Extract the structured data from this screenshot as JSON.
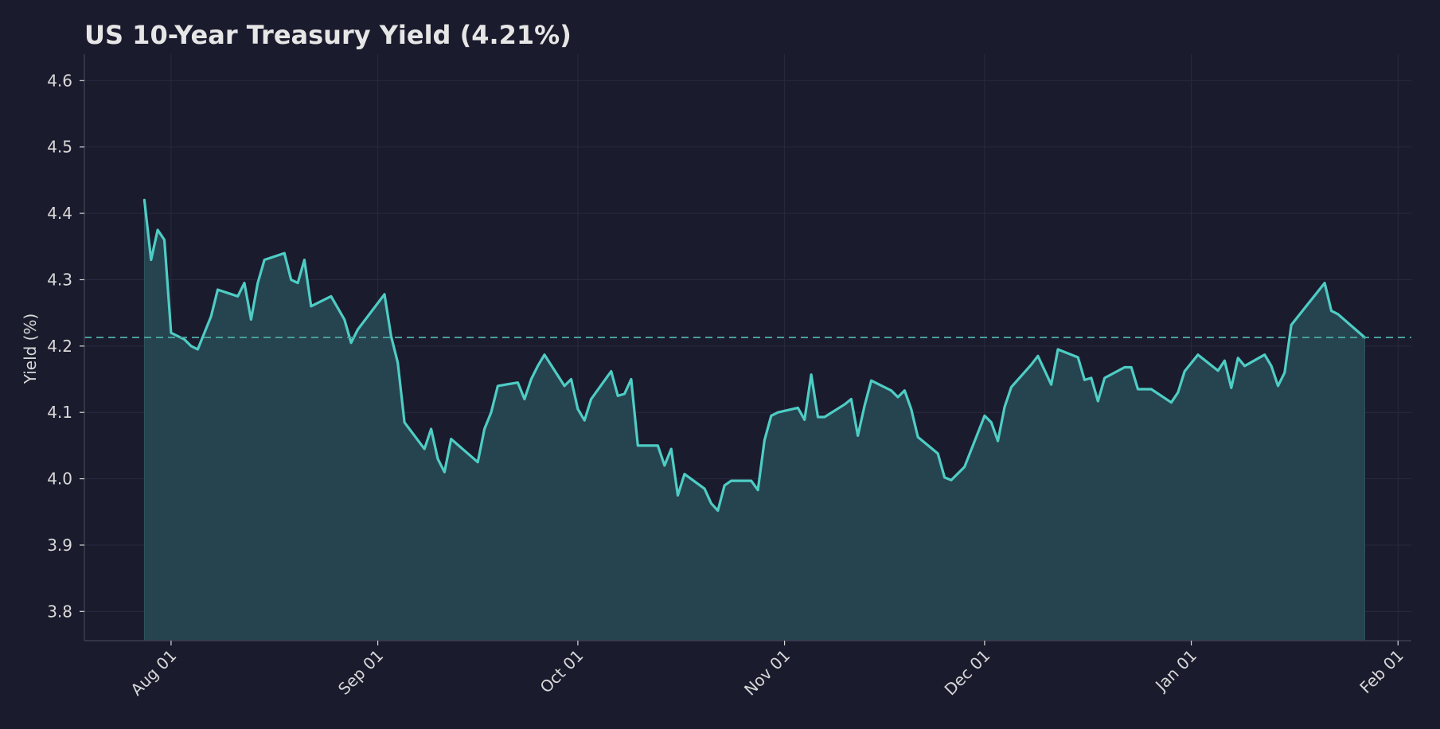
{
  "chart_data": {
    "type": "area",
    "title": "US 10-Year Treasury Yield  (4.21%)",
    "xlabel": "",
    "ylabel": "Yield (%)",
    "ylim": [
      3.756,
      4.64
    ],
    "xlim": [
      "2024-07-19",
      "2025-02-03"
    ],
    "x_ticks": [
      {
        "date": "2024-08-01",
        "label": "Aug 01"
      },
      {
        "date": "2024-09-01",
        "label": "Sep 01"
      },
      {
        "date": "2024-10-01",
        "label": "Oct 01"
      },
      {
        "date": "2024-11-01",
        "label": "Nov 01"
      },
      {
        "date": "2024-12-01",
        "label": "Dec 01"
      },
      {
        "date": "2025-01-01",
        "label": "Jan 01"
      },
      {
        "date": "2025-02-01",
        "label": "Feb 01"
      }
    ],
    "y_ticks": [
      3.8,
      3.9,
      4.0,
      4.1,
      4.2,
      4.3,
      4.4,
      4.5,
      4.6
    ],
    "grid": true,
    "reference_line": {
      "value": 4.213,
      "style": "dashed"
    },
    "colors": {
      "line": "#4ecdc4",
      "fill": "#264450",
      "background": "#1b1b2e",
      "grid": "#2a2a3e"
    },
    "series": [
      {
        "points": [
          [
            "2024-07-28",
            4.42
          ],
          [
            "2024-07-29",
            4.33
          ],
          [
            "2024-07-30",
            4.375
          ],
          [
            "2024-07-31",
            4.36
          ],
          [
            "2024-08-01",
            4.22
          ],
          [
            "2024-08-03",
            4.21
          ],
          [
            "2024-08-04",
            4.2
          ],
          [
            "2024-08-05",
            4.195
          ],
          [
            "2024-08-07",
            4.245
          ],
          [
            "2024-08-08",
            4.285
          ],
          [
            "2024-08-11",
            4.275
          ],
          [
            "2024-08-12",
            4.295
          ],
          [
            "2024-08-13",
            4.24
          ],
          [
            "2024-08-14",
            4.295
          ],
          [
            "2024-08-15",
            4.33
          ],
          [
            "2024-08-18",
            4.34
          ],
          [
            "2024-08-19",
            4.3
          ],
          [
            "2024-08-20",
            4.295
          ],
          [
            "2024-08-21",
            4.33
          ],
          [
            "2024-08-22",
            4.26
          ],
          [
            "2024-08-25",
            4.275
          ],
          [
            "2024-08-27",
            4.24
          ],
          [
            "2024-08-28",
            4.205
          ],
          [
            "2024-08-29",
            4.225
          ],
          [
            "2024-09-02",
            4.278
          ],
          [
            "2024-09-03",
            4.215
          ],
          [
            "2024-09-04",
            4.175
          ],
          [
            "2024-09-05",
            4.085
          ],
          [
            "2024-09-08",
            4.045
          ],
          [
            "2024-09-09",
            4.075
          ],
          [
            "2024-09-10",
            4.03
          ],
          [
            "2024-09-11",
            4.01
          ],
          [
            "2024-09-12",
            4.06
          ],
          [
            "2024-09-16",
            4.025
          ],
          [
            "2024-09-17",
            4.075
          ],
          [
            "2024-09-18",
            4.1
          ],
          [
            "2024-09-19",
            4.14
          ],
          [
            "2024-09-22",
            4.145
          ],
          [
            "2024-09-23",
            4.12
          ],
          [
            "2024-09-24",
            4.15
          ],
          [
            "2024-09-25",
            4.17
          ],
          [
            "2024-09-26",
            4.187
          ],
          [
            "2024-09-29",
            4.14
          ],
          [
            "2024-09-30",
            4.15
          ],
          [
            "2024-10-01",
            4.105
          ],
          [
            "2024-10-02",
            4.088
          ],
          [
            "2024-10-03",
            4.12
          ],
          [
            "2024-10-06",
            4.162
          ],
          [
            "2024-10-07",
            4.125
          ],
          [
            "2024-10-08",
            4.128
          ],
          [
            "2024-10-09",
            4.15
          ],
          [
            "2024-10-10",
            4.05
          ],
          [
            "2024-10-13",
            4.05
          ],
          [
            "2024-10-14",
            4.02
          ],
          [
            "2024-10-15",
            4.045
          ],
          [
            "2024-10-16",
            3.975
          ],
          [
            "2024-10-17",
            4.007
          ],
          [
            "2024-10-20",
            3.985
          ],
          [
            "2024-10-21",
            3.963
          ],
          [
            "2024-10-22",
            3.952
          ],
          [
            "2024-10-23",
            3.99
          ],
          [
            "2024-10-24",
            3.997
          ],
          [
            "2024-10-27",
            3.997
          ],
          [
            "2024-10-28",
            3.983
          ],
          [
            "2024-10-29",
            4.058
          ],
          [
            "2024-10-30",
            4.095
          ],
          [
            "2024-10-31",
            4.1
          ],
          [
            "2024-11-03",
            4.107
          ],
          [
            "2024-11-04",
            4.089
          ],
          [
            "2024-11-05",
            4.157
          ],
          [
            "2024-11-06",
            4.093
          ],
          [
            "2024-11-07",
            4.093
          ],
          [
            "2024-11-10",
            4.112
          ],
          [
            "2024-11-11",
            4.12
          ],
          [
            "2024-11-12",
            4.065
          ],
          [
            "2024-11-13",
            4.11
          ],
          [
            "2024-11-14",
            4.148
          ],
          [
            "2024-11-17",
            4.133
          ],
          [
            "2024-11-18",
            4.123
          ],
          [
            "2024-11-19",
            4.133
          ],
          [
            "2024-11-20",
            4.105
          ],
          [
            "2024-11-21",
            4.063
          ],
          [
            "2024-11-24",
            4.038
          ],
          [
            "2024-11-25",
            4.002
          ],
          [
            "2024-11-26",
            3.998
          ],
          [
            "2024-11-28",
            4.018
          ],
          [
            "2024-12-01",
            4.095
          ],
          [
            "2024-12-02",
            4.085
          ],
          [
            "2024-12-03",
            4.057
          ],
          [
            "2024-12-04",
            4.108
          ],
          [
            "2024-12-05",
            4.138
          ],
          [
            "2024-12-08",
            4.172
          ],
          [
            "2024-12-09",
            4.185
          ],
          [
            "2024-12-11",
            4.142
          ],
          [
            "2024-12-12",
            4.195
          ],
          [
            "2024-12-15",
            4.183
          ],
          [
            "2024-12-16",
            4.149
          ],
          [
            "2024-12-17",
            4.152
          ],
          [
            "2024-12-18",
            4.117
          ],
          [
            "2024-12-19",
            4.152
          ],
          [
            "2024-12-22",
            4.168
          ],
          [
            "2024-12-23",
            4.168
          ],
          [
            "2024-12-24",
            4.135
          ],
          [
            "2024-12-26",
            4.135
          ],
          [
            "2024-12-29",
            4.115
          ],
          [
            "2024-12-30",
            4.13
          ],
          [
            "2024-12-31",
            4.162
          ],
          [
            "2025-01-02",
            4.187
          ],
          [
            "2025-01-05",
            4.163
          ],
          [
            "2025-01-06",
            4.178
          ],
          [
            "2025-01-07",
            4.137
          ],
          [
            "2025-01-08",
            4.182
          ],
          [
            "2025-01-09",
            4.17
          ],
          [
            "2025-01-12",
            4.187
          ],
          [
            "2025-01-13",
            4.17
          ],
          [
            "2025-01-14",
            4.14
          ],
          [
            "2025-01-15",
            4.16
          ],
          [
            "2025-01-16",
            4.232
          ],
          [
            "2025-01-21",
            4.295
          ],
          [
            "2025-01-22",
            4.253
          ],
          [
            "2025-01-23",
            4.248
          ],
          [
            "2025-01-27",
            4.213
          ]
        ]
      }
    ]
  }
}
